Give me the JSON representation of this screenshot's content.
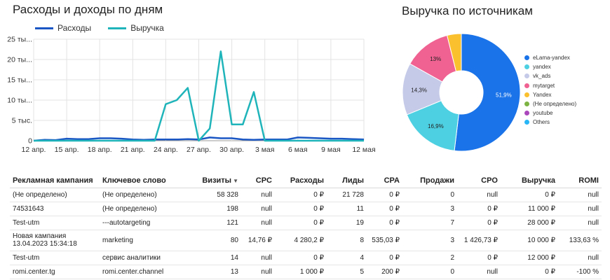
{
  "line_chart": {
    "title": "Расходы и доходы по дням"
  },
  "donut": {
    "title": "Выручка по источникам"
  },
  "chart_data": [
    {
      "type": "line",
      "title": "Расходы и доходы по дням",
      "x": [
        "12 апр.",
        "13 апр.",
        "14 апр.",
        "15 апр.",
        "16 апр.",
        "17 апр.",
        "18 апр.",
        "19 апр.",
        "20 апр.",
        "21 апр.",
        "22 апр.",
        "23 апр.",
        "24 апр.",
        "25 апр.",
        "26 апр.",
        "27 апр.",
        "28 апр.",
        "29 апр.",
        "30 апр.",
        "1 мая",
        "2 мая",
        "3 мая",
        "4 мая",
        "5 мая",
        "6 мая",
        "7 мая",
        "8 мая",
        "9 мая",
        "10 мая",
        "11 мая",
        "12 мая"
      ],
      "x_tick_labels": [
        "12 апр.",
        "15 апр.",
        "18 апр.",
        "21 апр.",
        "24 апр.",
        "27 апр.",
        "30 апр.",
        "3 мая",
        "6 мая",
        "9 мая",
        "12 мая"
      ],
      "y_tick_labels": [
        "0",
        "5 тыс.",
        "10 ты...",
        "15 ты...",
        "20 ты...",
        "25 ты..."
      ],
      "ylim": [
        0,
        25000
      ],
      "grid": true,
      "legend_position": "top-left",
      "series": [
        {
          "name": "Расходы",
          "color": "#1a56c4",
          "values": [
            0,
            200,
            150,
            500,
            400,
            400,
            600,
            600,
            500,
            300,
            200,
            300,
            300,
            300,
            400,
            300,
            800,
            600,
            600,
            300,
            200,
            300,
            300,
            300,
            800,
            700,
            600,
            500,
            500,
            400,
            300
          ]
        },
        {
          "name": "Выручка",
          "color": "#1fb4b9",
          "values": [
            0,
            0,
            0,
            0,
            0,
            0,
            0,
            0,
            0,
            0,
            0,
            0,
            9000,
            10000,
            13000,
            0,
            3000,
            22000,
            4000,
            4000,
            12000,
            0,
            0,
            0,
            0,
            0,
            0,
            0,
            0,
            0,
            0
          ]
        }
      ]
    },
    {
      "type": "pie",
      "title": "Выручка по источникам",
      "legend_position": "right",
      "labels": [
        "eLama-yandex",
        "yandex",
        "vk_ads",
        "mytarget",
        "Yandex",
        "(Не определено)",
        "youtube",
        "Others"
      ],
      "values": [
        51.9,
        16.9,
        14.3,
        13.0,
        3.9,
        0,
        0,
        0
      ],
      "value_labels": [
        "51,9%",
        "16,9%",
        "14,3%",
        "13%",
        "",
        "",
        "",
        ""
      ],
      "colors": [
        "#1a73e8",
        "#4dd0e1",
        "#c5cae9",
        "#f06292",
        "#fbc02d",
        "#7cb342",
        "#ab47bc",
        "#29b6f6"
      ]
    }
  ],
  "table": {
    "headers": [
      "Рекламная кампания",
      "Ключевое слово",
      "Визиты",
      "CPC",
      "Расходы",
      "Лиды",
      "CPA",
      "Продажи",
      "CPO",
      "Выручка",
      "ROMI"
    ],
    "sort_indicator": "▼",
    "rows": [
      [
        "(Не определено)",
        "(Не определено)",
        "58 328",
        "null",
        "0 ₽",
        "21 728",
        "0 ₽",
        "0",
        "null",
        "0 ₽",
        "null"
      ],
      [
        "74531643",
        "(Не определено)",
        "198",
        "null",
        "0 ₽",
        "11",
        "0 ₽",
        "3",
        "0 ₽",
        "11 000 ₽",
        "null"
      ],
      [
        "Test-utm",
        "---autotargeting",
        "121",
        "null",
        "0 ₽",
        "19",
        "0 ₽",
        "7",
        "0 ₽",
        "28 000 ₽",
        "null"
      ],
      [
        "Новая кампания 13.04.2023 15:34:18",
        "marketing",
        "80",
        "14,76 ₽",
        "4 280,2 ₽",
        "8",
        "535,03 ₽",
        "3",
        "1 426,73 ₽",
        "10 000 ₽",
        "133,63 %"
      ],
      [
        "Test-utm",
        "сервис аналитики",
        "14",
        "null",
        "0 ₽",
        "4",
        "0 ₽",
        "2",
        "0 ₽",
        "12 000 ₽",
        "null"
      ],
      [
        "romi.center.tg",
        "romi.center.channel",
        "13",
        "null",
        "1 000 ₽",
        "5",
        "200 ₽",
        "0",
        "null",
        "0 ₽",
        "-100 %"
      ]
    ]
  }
}
